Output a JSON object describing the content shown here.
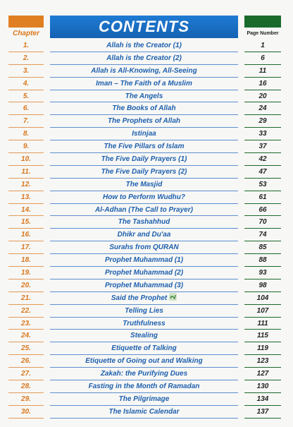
{
  "header": {
    "chapter_label": "Chapter",
    "title": "CONTENTS",
    "page_label": "Page Number"
  },
  "colors": {
    "orange": "#e07f22",
    "blue": "#1f7bd3",
    "green": "#1a6a2c"
  },
  "entries": [
    {
      "num": "1.",
      "title": "Allah is the Creator (1)",
      "page": "1"
    },
    {
      "num": "2.",
      "title": "Allah is the Creator (2)",
      "page": "6"
    },
    {
      "num": "3.",
      "title": "Allah is All-Knowing, All-Seeing",
      "page": "11"
    },
    {
      "num": "4.",
      "title": "Iman – The Faith of a Muslim",
      "page": "16"
    },
    {
      "num": "5.",
      "title": "The Angels",
      "page": "20"
    },
    {
      "num": "6.",
      "title": "The Books of Allah",
      "page": "24"
    },
    {
      "num": "7.",
      "title": "The Prophets of Allah",
      "page": "29"
    },
    {
      "num": "8.",
      "title": "Istinjaa",
      "page": "33"
    },
    {
      "num": "9.",
      "title": "The Five Pillars of Islam",
      "page": "37"
    },
    {
      "num": "10.",
      "title": "The Five Daily Prayers (1)",
      "page": "42"
    },
    {
      "num": "11.",
      "title": "The Five Daily Prayers (2)",
      "page": "47"
    },
    {
      "num": "12.",
      "title": "The Masjid",
      "page": "53"
    },
    {
      "num": "13.",
      "title": "How to Perform Wudhu?",
      "page": "61"
    },
    {
      "num": "14.",
      "title": "Al-Adhan (The Call to Prayer)",
      "page": "66"
    },
    {
      "num": "15.",
      "title": "The Tashahhud",
      "page": "70"
    },
    {
      "num": "16.",
      "title": "Dhikr and Du'aa",
      "page": "74"
    },
    {
      "num": "17.",
      "title": "Surahs from QURAN",
      "page": "85"
    },
    {
      "num": "18.",
      "title": "Prophet Muhammad (1)",
      "page": "88"
    },
    {
      "num": "19.",
      "title": "Prophet Muhammad (2)",
      "page": "93"
    },
    {
      "num": "20.",
      "title": "Prophet Muhammad (3)",
      "page": "98"
    },
    {
      "num": "21.",
      "title": "Said the Prophet",
      "page": "104",
      "icon": "arabic-salutation-icon"
    },
    {
      "num": "22.",
      "title": "Telling Lies",
      "page": "107"
    },
    {
      "num": "23.",
      "title": "Truthfulness",
      "page": "111"
    },
    {
      "num": "24.",
      "title": "Stealing",
      "page": "115"
    },
    {
      "num": "25.",
      "title": "Etiquette of Talking",
      "page": "119"
    },
    {
      "num": "26.",
      "title": "Etiquette of Going out and Walking",
      "page": "123"
    },
    {
      "num": "27.",
      "title": "Zakah: the Purifying Dues",
      "page": "127"
    },
    {
      "num": "28.",
      "title": "Fasting in the Month of Ramadan",
      "page": "130"
    },
    {
      "num": "29.",
      "title": "The Pilgrimage",
      "page": "134"
    },
    {
      "num": "30.",
      "title": "The Islamic Calendar",
      "page": "137"
    }
  ]
}
